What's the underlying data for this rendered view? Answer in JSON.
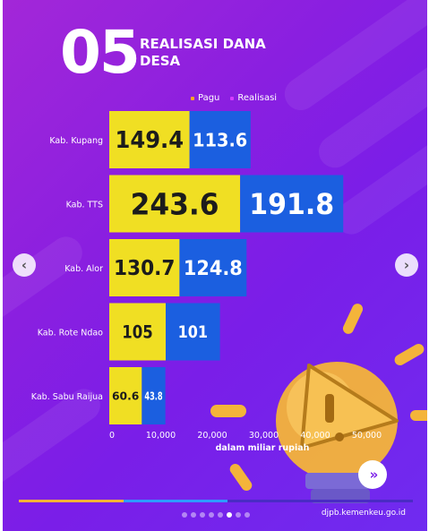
{
  "header": {
    "number": "05",
    "title": "REALISASI DANA DESA"
  },
  "legend": [
    {
      "label": "Pagu",
      "color": "#f5a623"
    },
    {
      "label": "Realisasi",
      "color": "#d63cff"
    }
  ],
  "chart_data": {
    "type": "bar",
    "orientation": "horizontal",
    "stacked": true,
    "categories": [
      "Kab. Kupang",
      "Kab. TTS",
      "Kab. Alor",
      "Kab. Rote Ndao",
      "Kab. Sabu Raijua"
    ],
    "series": [
      {
        "name": "Pagu",
        "values": [
          149.4,
          243.6,
          130.7,
          105,
          60.6
        ],
        "labels": [
          "149.4",
          "243.6",
          "130.7",
          "105",
          "60.6"
        ],
        "color": "#f0df23"
      },
      {
        "name": "Realisasi",
        "values": [
          113.6,
          191.8,
          124.8,
          101,
          43.8
        ],
        "labels": [
          "113.6",
          "191.8",
          "124.8",
          "101",
          "43.8"
        ],
        "color": "#1b5fe0"
      }
    ],
    "xlabel": "dalam miliar rupiah",
    "xticks": [
      "0",
      "10,000",
      "20,000",
      "30,000",
      "40,000",
      "50,000"
    ],
    "grid": false,
    "legend_position": "top-right"
  },
  "footer": {
    "website": "djpb.kemenkeu.go.id"
  },
  "carousel": {
    "prev_icon": "chevron-left-icon",
    "next_icon": "chevron-right-icon",
    "dot_count": 8,
    "active_dot": 5,
    "progress": 0.53
  }
}
